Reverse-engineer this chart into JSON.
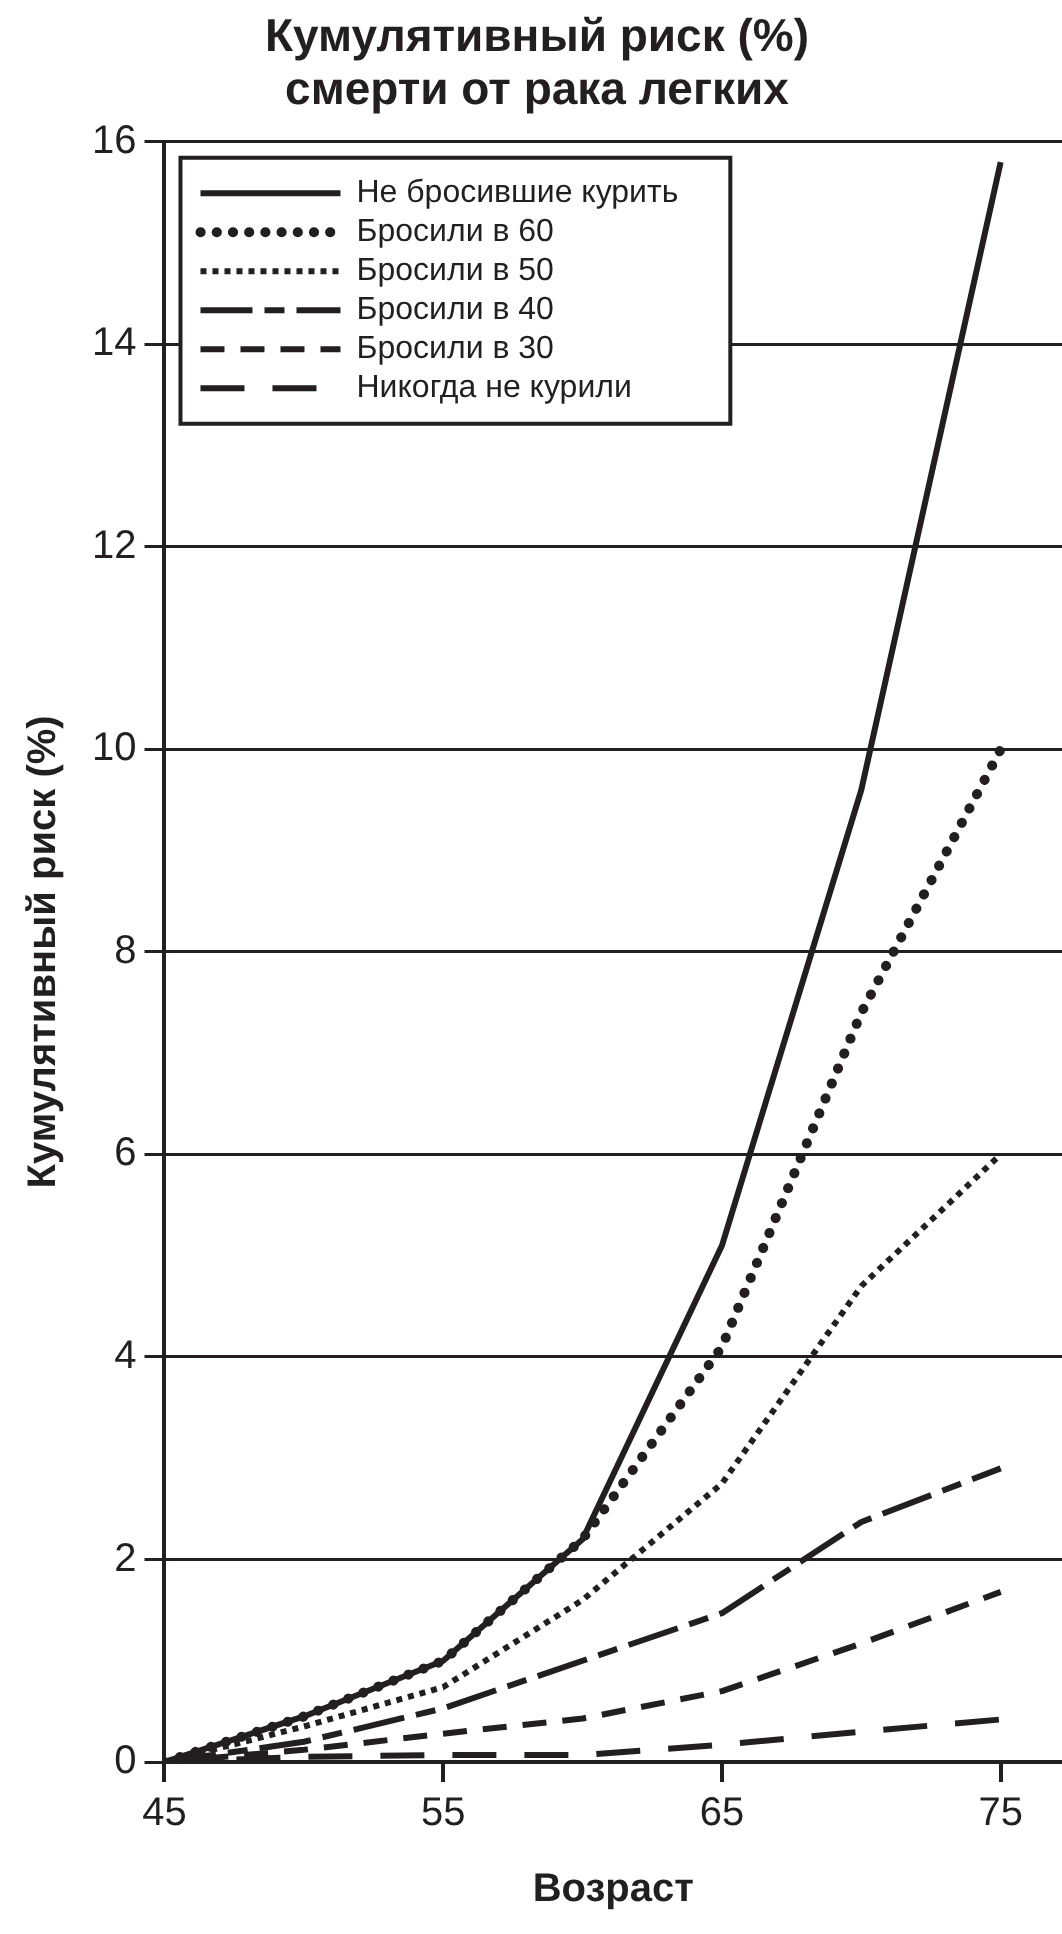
{
  "chart_data": {
    "type": "line",
    "title": "Кумулятивный риск (%)\nсмерти от рака легких",
    "xlabel": "Возраст",
    "ylabel": "Кумулятивный риск (%)",
    "x": [
      45,
      50,
      55,
      60,
      65,
      70,
      75
    ],
    "series": [
      {
        "name": "Не бросившие курить",
        "color": "#231f20",
        "line_style": "solid",
        "values": [
          0,
          0.45,
          1.0,
          2.2,
          5.1,
          9.6,
          15.8
        ]
      },
      {
        "name": "Бросили в 60",
        "color": "#231f20",
        "line_style": "dotted",
        "values": [
          0,
          0.45,
          1.0,
          2.2,
          4.1,
          7.4,
          10.0
        ]
      },
      {
        "name": "Бросили в 50",
        "color": "#231f20",
        "line_style": "dotted",
        "values": [
          0,
          0.35,
          0.74,
          1.6,
          2.75,
          4.7,
          6.0
        ]
      },
      {
        "name": "Бросили в 40",
        "color": "#231f20",
        "line_style": "dashed",
        "values": [
          0,
          0.2,
          0.53,
          1.0,
          1.47,
          2.37,
          2.9
        ]
      },
      {
        "name": "Бросили в 30",
        "color": "#231f20",
        "line_style": "dashed",
        "values": [
          0,
          0.12,
          0.28,
          0.43,
          0.7,
          1.17,
          1.68
        ]
      },
      {
        "name": "Никогда не курили",
        "color": "#231f20",
        "line_style": "dashed",
        "values": [
          0,
          0.05,
          0.07,
          0.07,
          0.17,
          0.3,
          0.42
        ]
      }
    ],
    "xlim": [
      45,
      77.2
    ],
    "xticks": [
      45,
      55,
      65,
      75
    ],
    "ylim": [
      0,
      16
    ],
    "yticks": [
      0,
      2,
      4,
      6,
      8,
      10,
      12,
      14,
      16
    ],
    "grid": "y",
    "legend": "top left",
    "marker": "none"
  }
}
